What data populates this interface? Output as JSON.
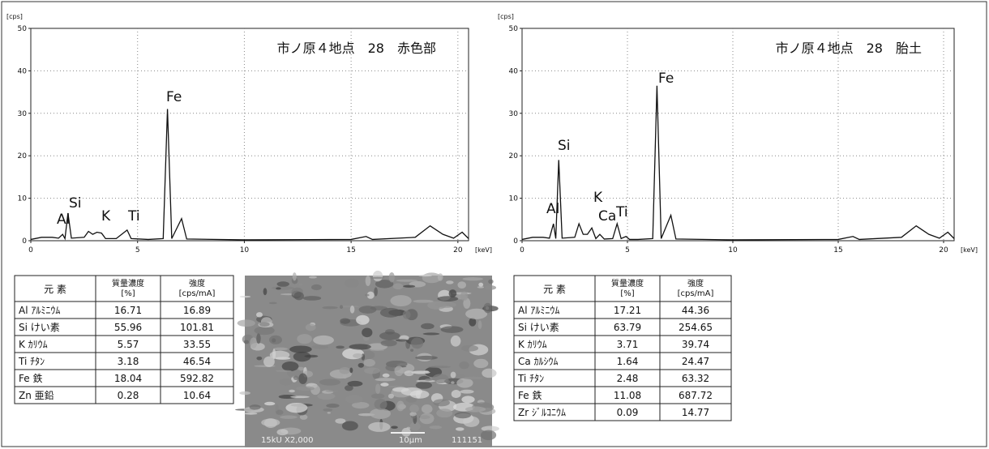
{
  "chart_data": [
    {
      "type": "line",
      "title": "市ノ原４地点　28　赤色部",
      "y_label": "[cps]",
      "x_label": "[keV]",
      "xlim": [
        0,
        20.5
      ],
      "ylim": [
        0,
        50
      ],
      "xticks": [
        0,
        5,
        10,
        15,
        20
      ],
      "yticks": [
        0,
        10,
        20,
        30,
        40,
        50
      ],
      "grid": true,
      "annotations": [
        "Al",
        "Si",
        "K",
        "Ti",
        "Fe"
      ],
      "x": [
        0,
        0.5,
        1.0,
        1.3,
        1.49,
        1.6,
        1.74,
        1.9,
        2.5,
        2.7,
        2.9,
        3.1,
        3.31,
        3.5,
        4.0,
        4.51,
        4.7,
        5.5,
        6.2,
        6.4,
        6.6,
        7.06,
        7.3,
        10,
        15,
        15.7,
        16,
        18,
        18.7,
        19.3,
        19.8,
        20.2,
        20.5
      ],
      "series": [
        {
          "name": "spectrum",
          "color": "#111111",
          "values": [
            0.3,
            0.8,
            0.8,
            0.6,
            1.5,
            0.5,
            6.5,
            0.6,
            0.8,
            2.2,
            1.5,
            2.0,
            1.8,
            0.5,
            0.5,
            2.5,
            0.5,
            0.3,
            0.5,
            31,
            0.5,
            5.2,
            0.4,
            0.2,
            0.3,
            1.0,
            0.3,
            0.8,
            3.5,
            1.5,
            0.6,
            2.0,
            0.5
          ]
        }
      ]
    },
    {
      "type": "line",
      "title": "市ノ原４地点　28　胎土",
      "y_label": "[cps]",
      "x_label": "[keV]",
      "xlim": [
        0,
        20.5
      ],
      "ylim": [
        0,
        50
      ],
      "xticks": [
        0,
        5,
        10,
        15,
        20
      ],
      "yticks": [
        0,
        10,
        20,
        30,
        40,
        50
      ],
      "grid": true,
      "annotations": [
        "Al",
        "Si",
        "K",
        "Ca",
        "Ti",
        "Fe"
      ],
      "x": [
        0,
        0.5,
        1.0,
        1.3,
        1.49,
        1.6,
        1.74,
        1.9,
        2.5,
        2.7,
        2.9,
        3.1,
        3.31,
        3.5,
        3.69,
        3.9,
        4.3,
        4.51,
        4.7,
        4.93,
        5.1,
        5.5,
        6.2,
        6.4,
        6.6,
        7.06,
        7.3,
        10,
        15,
        15.7,
        16,
        18,
        18.7,
        19.3,
        19.8,
        20.2,
        20.5
      ],
      "series": [
        {
          "name": "spectrum",
          "color": "#111111",
          "values": [
            0.3,
            0.8,
            0.8,
            0.6,
            4.0,
            0.5,
            19,
            0.6,
            0.8,
            4.0,
            1.5,
            1.5,
            3.0,
            0.5,
            1.5,
            0.4,
            0.5,
            4.0,
            0.5,
            1.0,
            0.3,
            0.3,
            0.5,
            36.5,
            0.5,
            6.0,
            0.4,
            0.2,
            0.3,
            1.0,
            0.3,
            0.8,
            3.5,
            1.5,
            0.6,
            2.0,
            0.5
          ]
        }
      ]
    }
  ],
  "tables": [
    {
      "header": [
        "元 素",
        "質量濃度 [%]",
        "強度 [cps/mA]"
      ],
      "rows": [
        [
          "Al ｱﾙﾐﾆｳﾑ",
          16.71,
          16.89
        ],
        [
          "Si けい素",
          55.96,
          101.81
        ],
        [
          "K ｶﾘｳﾑ",
          5.57,
          33.55
        ],
        [
          "Ti ﾁﾀﾝ",
          3.18,
          46.54
        ],
        [
          "Fe 鉄",
          18.04,
          592.82
        ],
        [
          "Zn 亜鉛",
          0.28,
          10.64
        ]
      ]
    },
    {
      "header": [
        "元 素",
        "質量濃度 [%]",
        "強度 [cps/mA]"
      ],
      "rows": [
        [
          "Al ｱﾙﾐﾆｳﾑ",
          17.21,
          44.36
        ],
        [
          "Si けい素",
          63.79,
          254.65
        ],
        [
          "K ｶﾘｳﾑ",
          3.71,
          39.74
        ],
        [
          "Ca ｶﾙｼｳﾑ",
          1.64,
          24.47
        ],
        [
          "Ti ﾁﾀﾝ",
          2.48,
          63.32
        ],
        [
          "Fe 鉄",
          11.08,
          687.72
        ],
        [
          "Zr ｼﾞﾙｺﾆｳﾑ",
          0.09,
          14.77
        ]
      ]
    }
  ],
  "image": {
    "caption": [
      "15kU  X2,000",
      "10μm",
      "111151"
    ]
  }
}
